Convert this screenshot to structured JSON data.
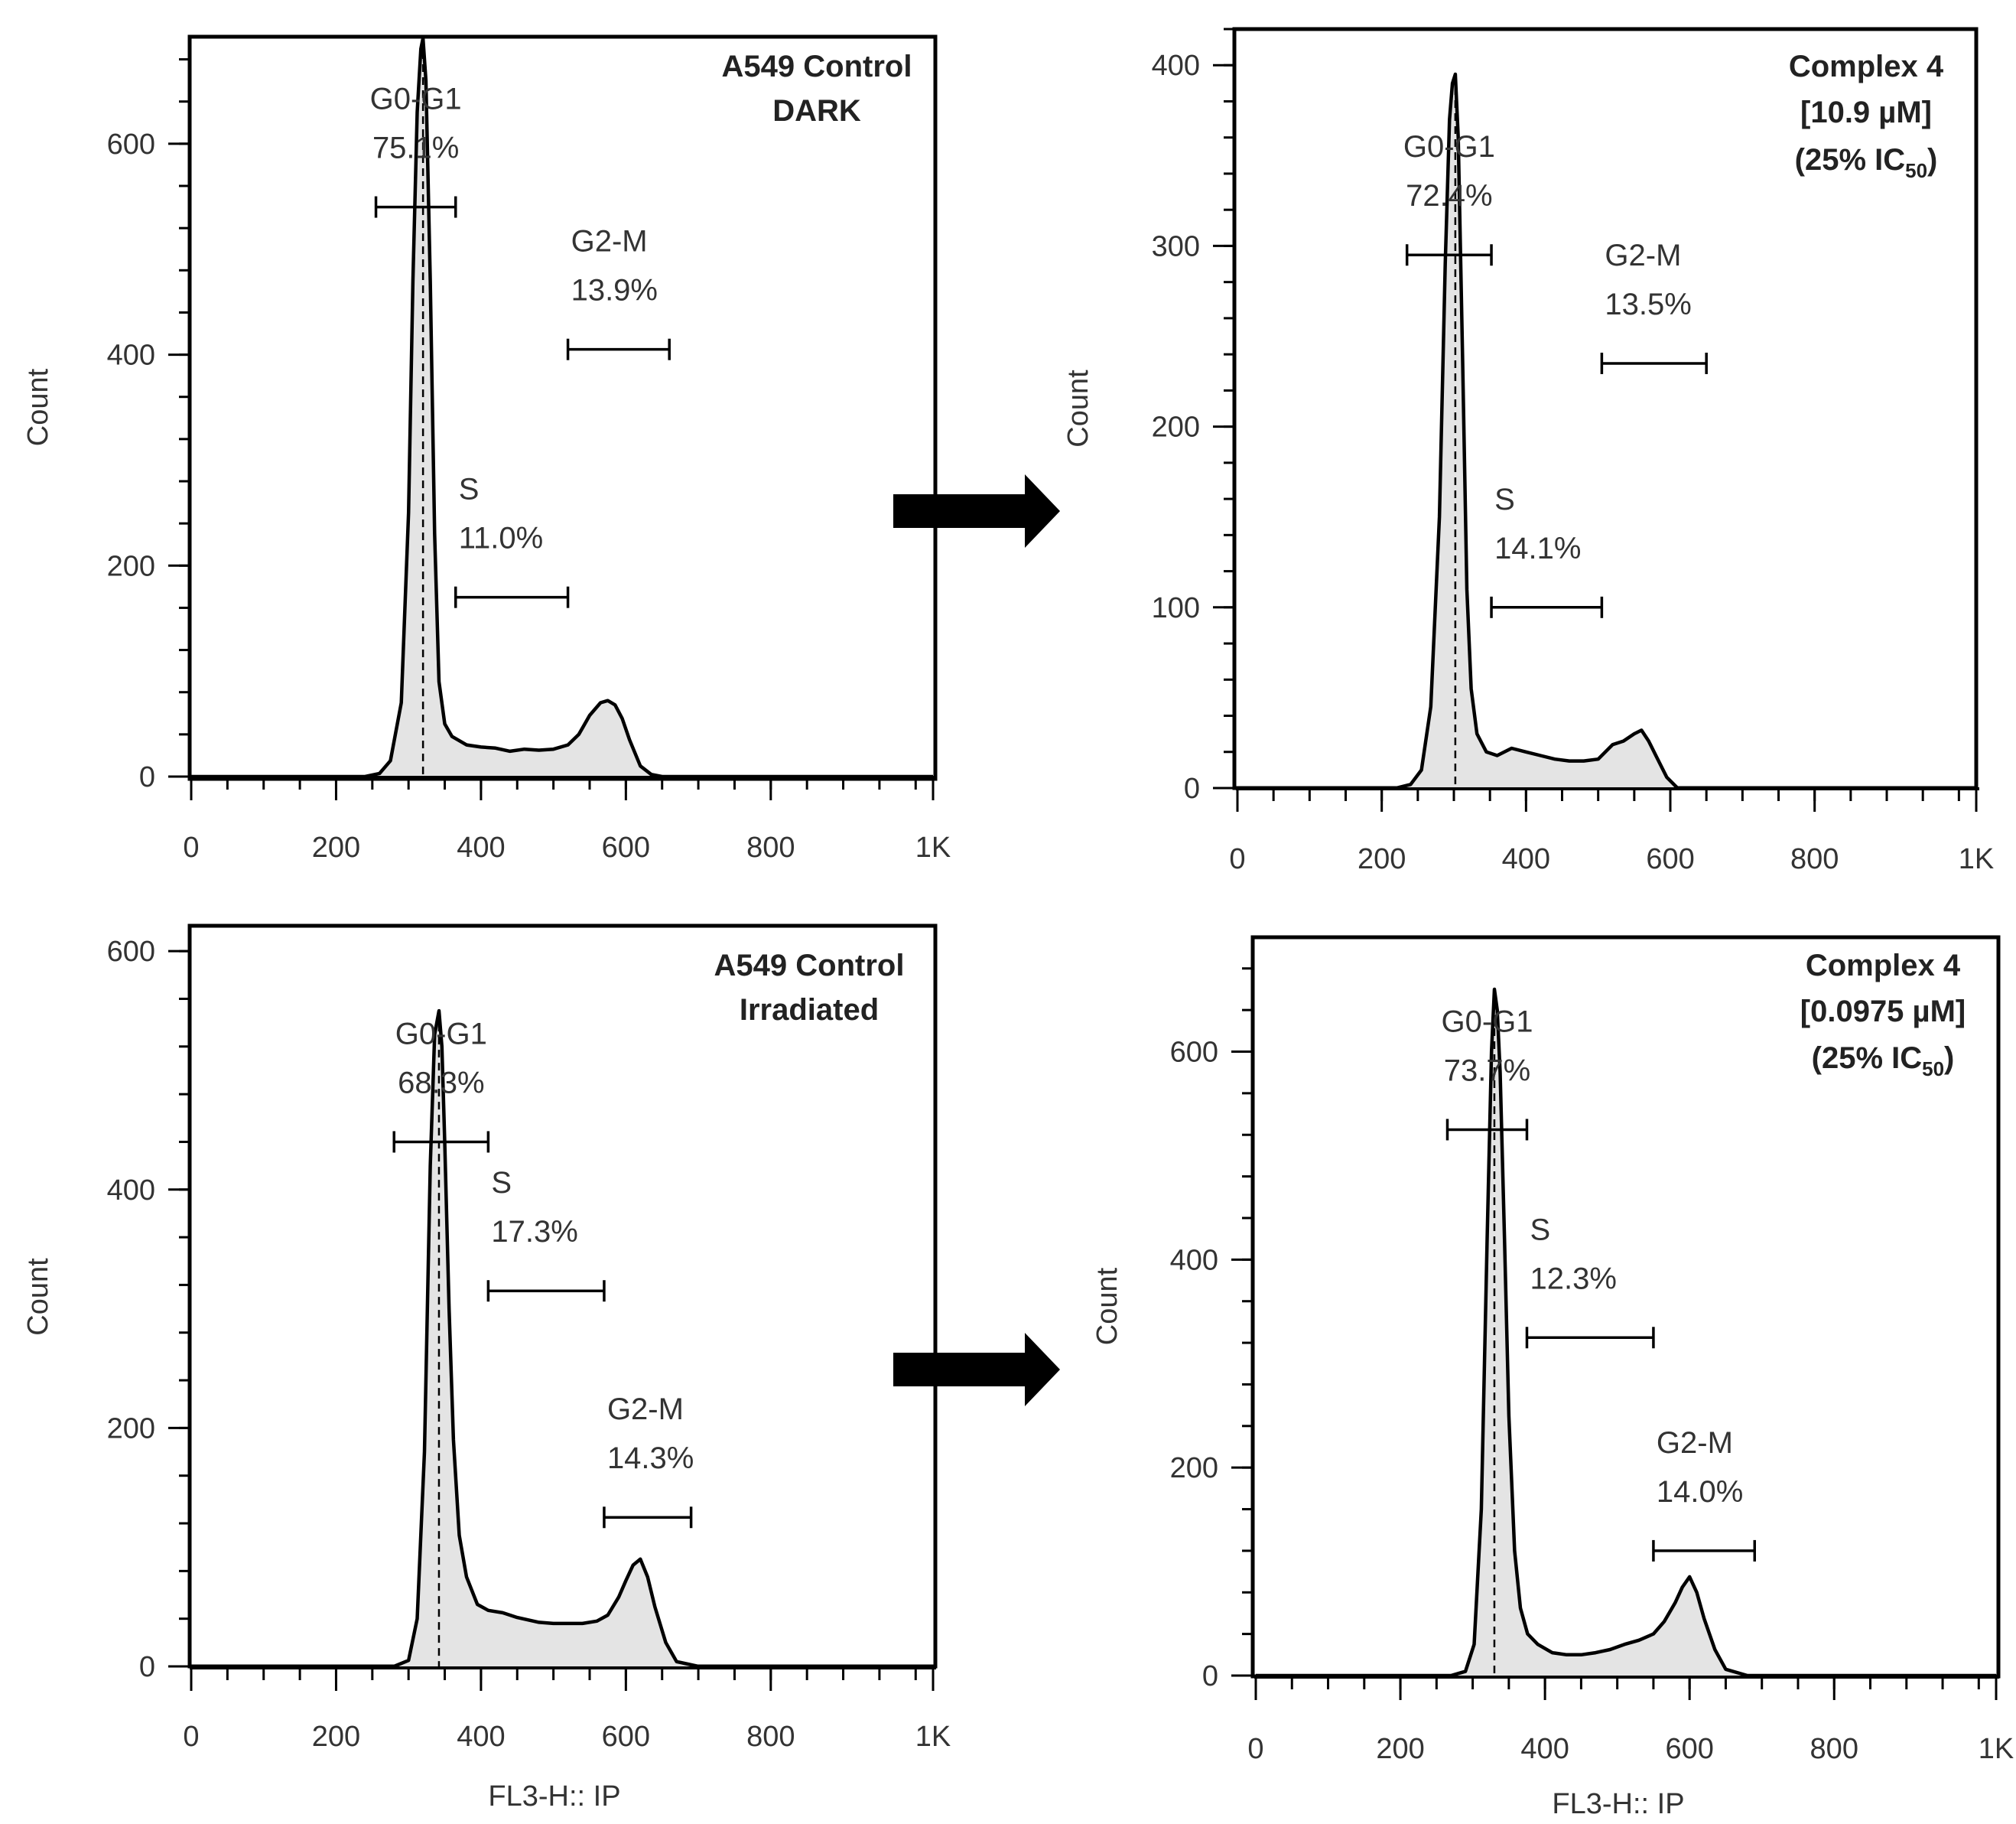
{
  "chart_data": [
    {
      "type": "area",
      "panel": "top-left",
      "title_lines": [
        "A549 Control",
        "DARK"
      ],
      "ylabel": "Count",
      "xlabel": "",
      "xlim": [
        0,
        1024
      ],
      "ylim": [
        0,
        700
      ],
      "xticks": [
        0,
        200,
        400,
        600,
        800,
        1024
      ],
      "xtick_labels": [
        "0",
        "200",
        "400",
        "600",
        "800",
        "1K"
      ],
      "yticks": [
        0,
        200,
        400,
        600
      ],
      "ytick_labels": [
        "0",
        "200",
        "400",
        "600"
      ],
      "histogram": {
        "x": [
          0,
          240,
          260,
          275,
          290,
          300,
          306,
          312,
          317,
          320,
          324,
          330,
          336,
          342,
          350,
          360,
          380,
          400,
          420,
          440,
          460,
          480,
          500,
          520,
          535,
          550,
          565,
          575,
          585,
          595,
          605,
          620,
          635,
          650,
          700,
          1024
        ],
        "y": [
          0,
          0,
          3,
          15,
          70,
          250,
          470,
          630,
          690,
          700,
          660,
          470,
          230,
          90,
          50,
          38,
          30,
          28,
          27,
          24,
          26,
          25,
          26,
          30,
          40,
          58,
          70,
          72,
          68,
          55,
          35,
          10,
          2,
          0,
          0,
          0
        ]
      },
      "gates": [
        {
          "name": "G0-G1",
          "percent": "75.1%",
          "x_range": [
            255,
            365
          ],
          "y": 540
        },
        {
          "name": "S",
          "percent": "11.0%",
          "x_range": [
            365,
            520
          ],
          "y": 170
        },
        {
          "name": "G2-M",
          "percent": "13.9%",
          "x_range": [
            520,
            660
          ],
          "y": 405
        }
      ]
    },
    {
      "type": "area",
      "panel": "top-right",
      "title_lines": [
        "Complex  4",
        "[10.9 µM]",
        "(25% IC"
      ],
      "title_subscript": "50",
      "title_suffix": ")",
      "ylabel": "Count",
      "xlabel": "",
      "xlim": [
        0,
        1024
      ],
      "ylim": [
        0,
        420
      ],
      "xticks": [
        0,
        200,
        400,
        600,
        800,
        1024
      ],
      "xtick_labels": [
        "0",
        "200",
        "400",
        "600",
        "800",
        "1K"
      ],
      "yticks": [
        0,
        100,
        200,
        300,
        400
      ],
      "ytick_labels": [
        "0",
        "100",
        "200",
        "300",
        "400"
      ],
      "histogram": {
        "x": [
          0,
          220,
          240,
          255,
          268,
          280,
          288,
          294,
          298,
          302,
          306,
          312,
          318,
          324,
          332,
          345,
          360,
          380,
          400,
          420,
          440,
          460,
          480,
          500,
          520,
          535,
          550,
          560,
          570,
          580,
          595,
          610,
          640,
          1024
        ],
        "y": [
          0,
          0,
          2,
          10,
          45,
          150,
          290,
          370,
          390,
          395,
          360,
          240,
          110,
          55,
          30,
          20,
          18,
          22,
          20,
          18,
          16,
          15,
          15,
          16,
          24,
          26,
          30,
          32,
          26,
          18,
          6,
          0,
          0,
          0
        ]
      },
      "gates": [
        {
          "name": "G0-G1",
          "percent": "72.4%",
          "x_range": [
            235,
            352
          ],
          "y": 295
        },
        {
          "name": "S",
          "percent": "14.1%",
          "x_range": [
            352,
            505
          ],
          "y": 100
        },
        {
          "name": "G2-M",
          "percent": "13.5%",
          "x_range": [
            505,
            650
          ],
          "y": 235
        }
      ]
    },
    {
      "type": "area",
      "panel": "bottom-left",
      "title_lines": [
        "A549 Control",
        "Irradiated"
      ],
      "ylabel": "Count",
      "xlabel": "FL3-H:: IP",
      "xlim": [
        0,
        1024
      ],
      "ylim": [
        0,
        620
      ],
      "xticks": [
        0,
        200,
        400,
        600,
        800,
        1024
      ],
      "xtick_labels": [
        "0",
        "200",
        "400",
        "600",
        "800",
        "1K"
      ],
      "yticks": [
        0,
        200,
        400,
        600
      ],
      "ytick_labels": [
        "0",
        "200",
        "400",
        "600"
      ],
      "histogram": {
        "x": [
          0,
          280,
          300,
          312,
          322,
          330,
          336,
          342,
          346,
          350,
          356,
          362,
          370,
          380,
          395,
          410,
          430,
          450,
          480,
          500,
          520,
          540,
          560,
          575,
          590,
          600,
          610,
          620,
          630,
          640,
          655,
          670,
          700,
          1024
        ],
        "y": [
          0,
          0,
          5,
          40,
          180,
          420,
          530,
          550,
          520,
          440,
          300,
          190,
          110,
          75,
          52,
          47,
          45,
          41,
          37,
          36,
          36,
          36,
          38,
          43,
          58,
          72,
          85,
          90,
          75,
          50,
          20,
          4,
          0,
          0
        ]
      },
      "gates": [
        {
          "name": "G0-G1",
          "percent": "68.3%",
          "x_range": [
            280,
            410
          ],
          "y": 440
        },
        {
          "name": "S",
          "percent": "17.3%",
          "x_range": [
            410,
            570
          ],
          "y": 315
        },
        {
          "name": "G2-M",
          "percent": "14.3%",
          "x_range": [
            570,
            690
          ],
          "y": 125
        }
      ]
    },
    {
      "type": "area",
      "panel": "bottom-right",
      "title_lines": [
        "Complex  4",
        "[0.0975 µM]",
        "(25% IC"
      ],
      "title_subscript": "50",
      "title_suffix": ")",
      "ylabel": "Count",
      "xlabel": "FL3-H:: IP",
      "xlim": [
        0,
        1024
      ],
      "ylim": [
        0,
        710
      ],
      "xticks": [
        0,
        200,
        400,
        600,
        800,
        1024
      ],
      "xtick_labels": [
        "0",
        "200",
        "400",
        "600",
        "800",
        "1K"
      ],
      "yticks": [
        0,
        200,
        400,
        600
      ],
      "ytick_labels": [
        "0",
        "200",
        "400",
        "600"
      ],
      "histogram": {
        "x": [
          0,
          270,
          290,
          302,
          312,
          320,
          326,
          330,
          334,
          338,
          344,
          350,
          358,
          366,
          376,
          390,
          410,
          430,
          450,
          470,
          490,
          510,
          530,
          550,
          565,
          580,
          590,
          600,
          610,
          620,
          635,
          650,
          680,
          1024
        ],
        "y": [
          0,
          0,
          4,
          30,
          160,
          420,
          600,
          660,
          640,
          580,
          420,
          250,
          120,
          65,
          40,
          30,
          22,
          20,
          20,
          22,
          25,
          30,
          34,
          40,
          52,
          70,
          85,
          95,
          80,
          55,
          25,
          6,
          0,
          0
        ]
      },
      "gates": [
        {
          "name": "G0-G1",
          "percent": "73.7%",
          "x_range": [
            265,
            375
          ],
          "y": 525
        },
        {
          "name": "S",
          "percent": "12.3%",
          "x_range": [
            375,
            550
          ],
          "y": 325
        },
        {
          "name": "G2-M",
          "percent": "14.0%",
          "x_range": [
            550,
            690
          ],
          "y": 120
        }
      ]
    }
  ]
}
